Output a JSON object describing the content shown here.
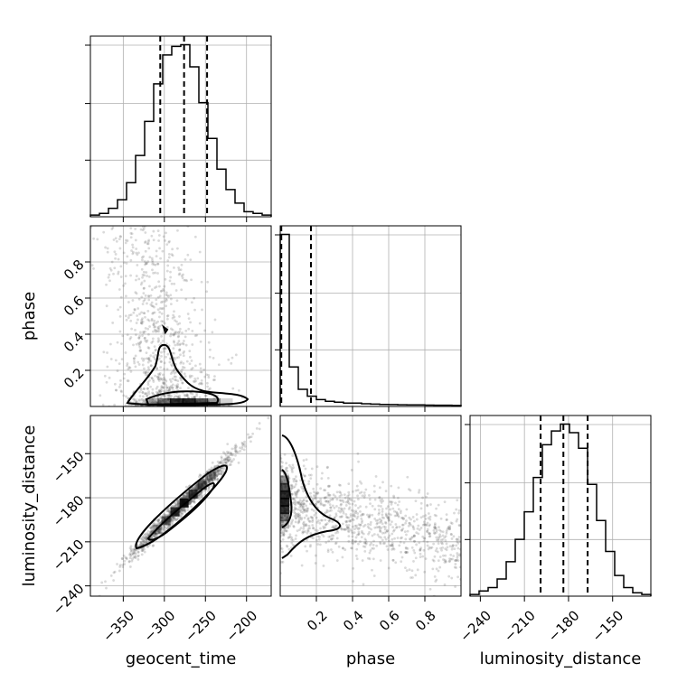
{
  "chart_data": {
    "type": "corner",
    "parameters": [
      {
        "name": "geocent_time",
        "label": "geocent_time",
        "range": [
          -390,
          -170
        ],
        "ticks": [
          -350,
          -300,
          -250,
          -200
        ],
        "tick_labels": [
          "−350",
          "−300",
          "−250",
          "−200"
        ]
      },
      {
        "name": "phase",
        "label": "phase",
        "range": [
          0.0,
          1.0
        ],
        "ticks": [
          0.2,
          0.4,
          0.6,
          0.8
        ],
        "tick_labels": [
          "0.2",
          "0.4",
          "0.6",
          "0.8"
        ]
      },
      {
        "name": "luminosity_distance",
        "label": "luminosity_distance",
        "range": [
          -247,
          -124
        ],
        "ticks": [
          -240,
          -210,
          -180,
          -150
        ],
        "tick_labels": [
          "−240",
          "−210",
          "−180",
          "−150"
        ]
      }
    ],
    "histograms": [
      {
        "param": "geocent_time",
        "bin_edges": [
          -390,
          -379,
          -368,
          -357,
          -346,
          -335,
          -324,
          -313,
          -302,
          -291,
          -280,
          -269,
          -258,
          -247,
          -236,
          -225,
          -214,
          -203,
          -192,
          -181,
          -170
        ],
        "counts": [
          1,
          2,
          5,
          10,
          20,
          36,
          56,
          78,
          95,
          100,
          101,
          88,
          67,
          46,
          28,
          16,
          8,
          3,
          2,
          1
        ],
        "quantiles": [
          -305,
          -276,
          -248
        ]
      },
      {
        "param": "phase",
        "bin_edges": [
          0,
          0.05,
          0.1,
          0.15,
          0.2,
          0.25,
          0.3,
          0.35,
          0.4,
          0.45,
          0.5,
          0.55,
          0.6,
          0.65,
          0.7,
          0.75,
          0.8,
          0.85,
          0.9,
          0.95,
          1.0
        ],
        "counts": [
          100,
          23,
          10,
          6,
          4,
          3,
          2.5,
          2,
          2,
          1.6,
          1.4,
          1.2,
          1.1,
          1,
          0.9,
          0.9,
          0.8,
          0.7,
          0.7,
          0.6
        ],
        "quantiles": [
          0.006,
          0.17
        ]
      },
      {
        "param": "luminosity_distance",
        "bin_edges": [
          -247,
          -240.85,
          -234.7,
          -228.55,
          -222.4,
          -216.25,
          -210.1,
          -203.95,
          -197.8,
          -191.65,
          -185.5,
          -179.35,
          -173.2,
          -167.05,
          -160.9,
          -154.75,
          -148.6,
          -142.45,
          -136.3,
          -130.15,
          -124
        ],
        "counts": [
          1,
          3,
          5,
          10,
          20,
          33,
          49,
          69,
          88,
          96,
          100,
          95,
          86,
          65,
          44,
          26,
          12,
          5,
          2,
          1
        ],
        "quantiles": [
          -199,
          -183.5,
          -167
        ]
      }
    ],
    "pairs": [
      {
        "x": "geocent_time",
        "y": "phase",
        "correlation": "phase concentrated near 0, broadens toward early geocent_time"
      },
      {
        "x": "geocent_time",
        "y": "luminosity_distance",
        "correlation": "strong positive linear"
      },
      {
        "x": "phase",
        "y": "luminosity_distance",
        "correlation": "mode at phase 0, luminosity_distance about -180"
      }
    ],
    "grid": true,
    "legend": "none"
  }
}
